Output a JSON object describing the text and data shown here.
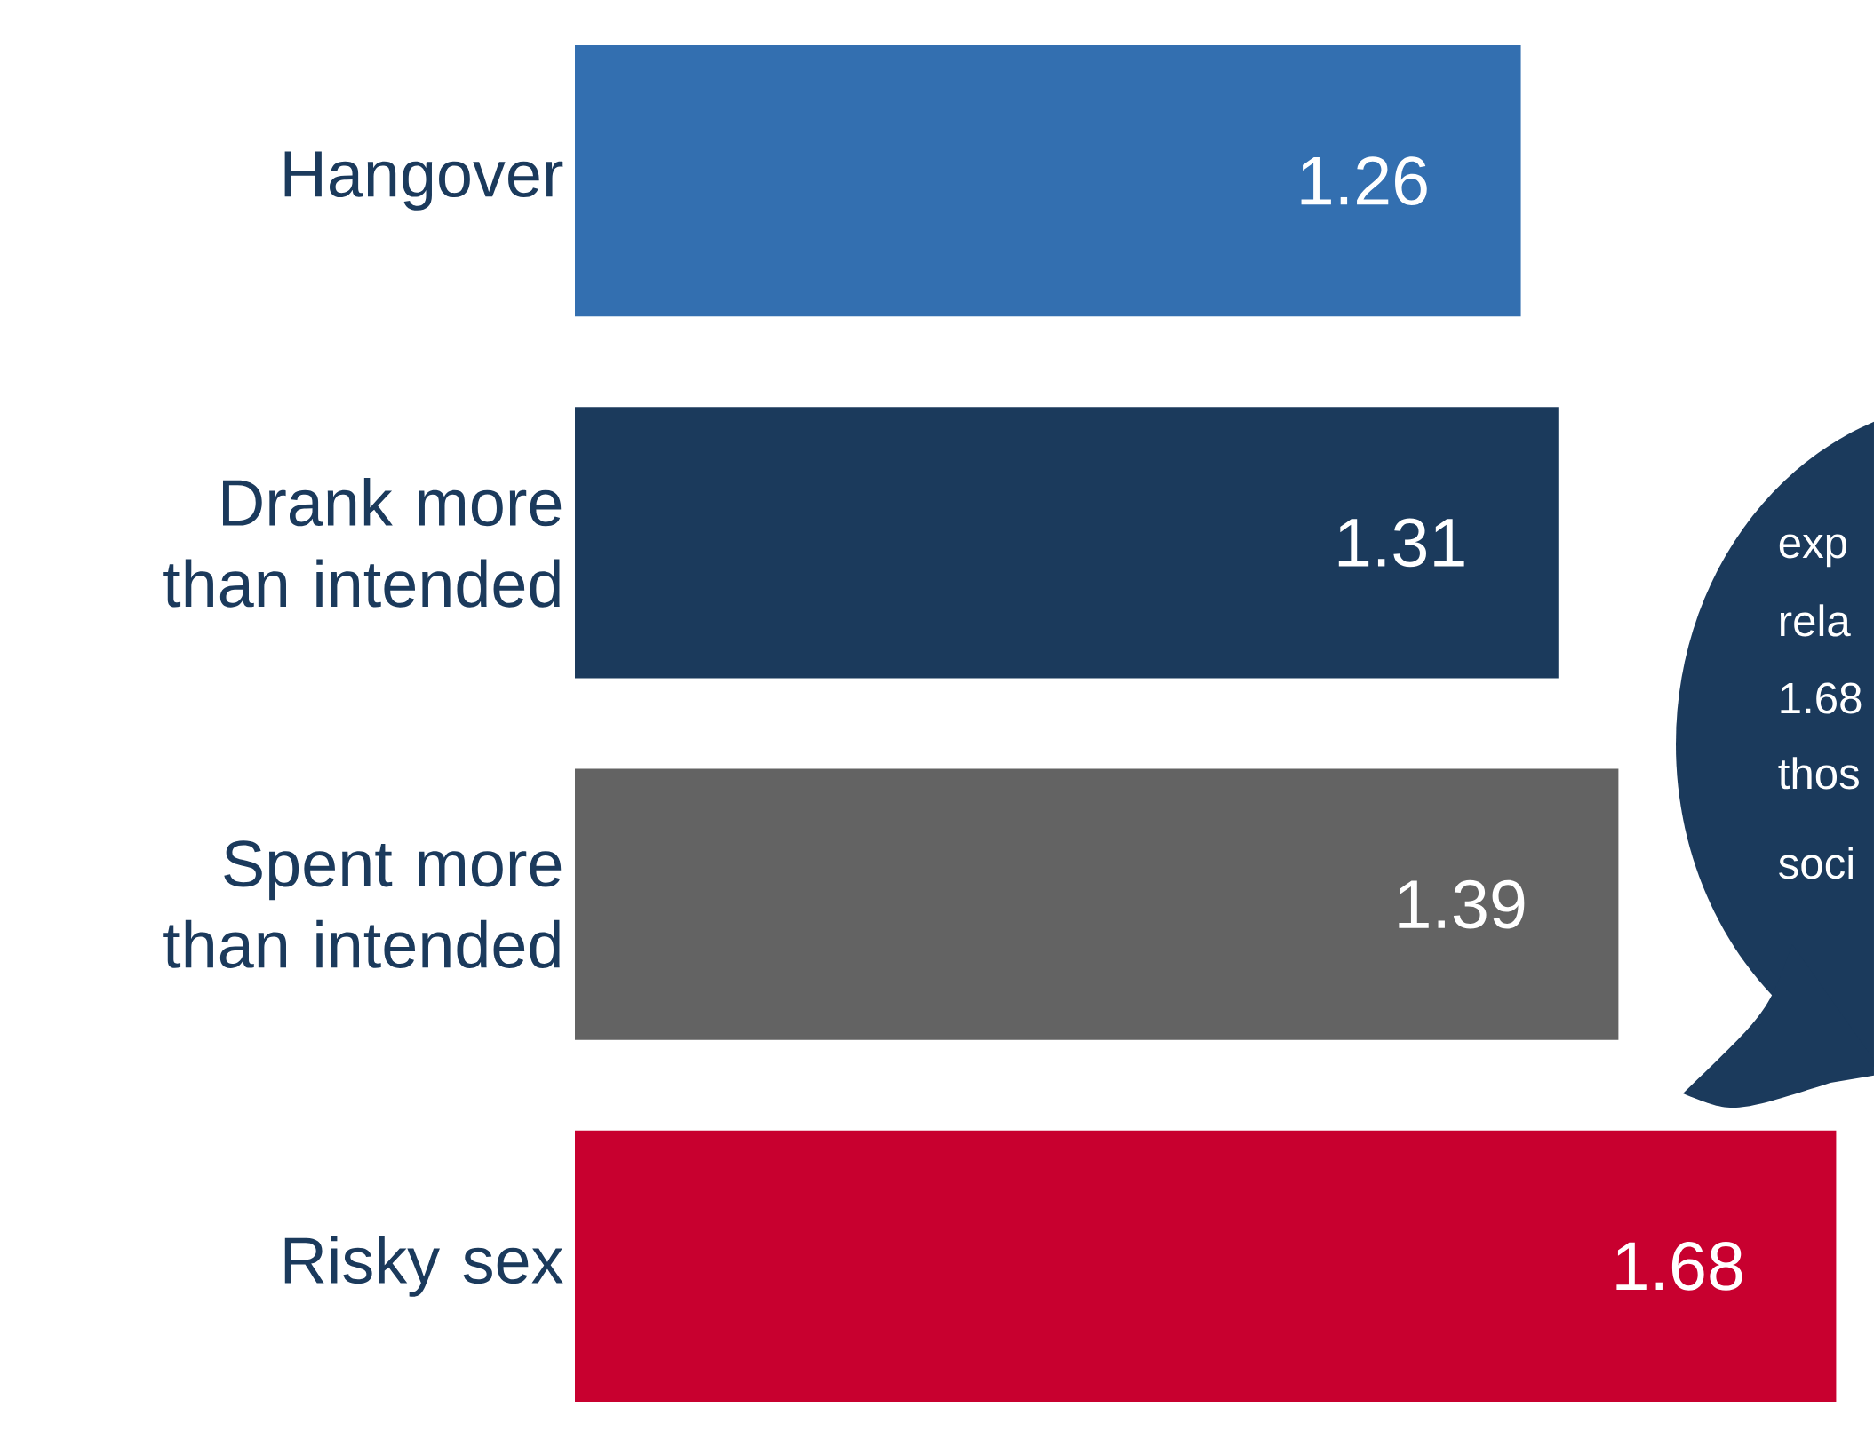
{
  "chart_data": {
    "type": "bar",
    "orientation": "horizontal",
    "categories": [
      "Hangover",
      "Drank more than intended",
      "Spent more than intended",
      "Risky sex"
    ],
    "values": [
      1.26,
      1.31,
      1.39,
      1.68
    ],
    "colors": [
      "#336fb0",
      "#1b3a5c",
      "#636363",
      "#c8002f"
    ],
    "data_labels": true,
    "annotations": [
      "exp",
      "rela",
      "1.68",
      "thos",
      "soci"
    ]
  }
}
